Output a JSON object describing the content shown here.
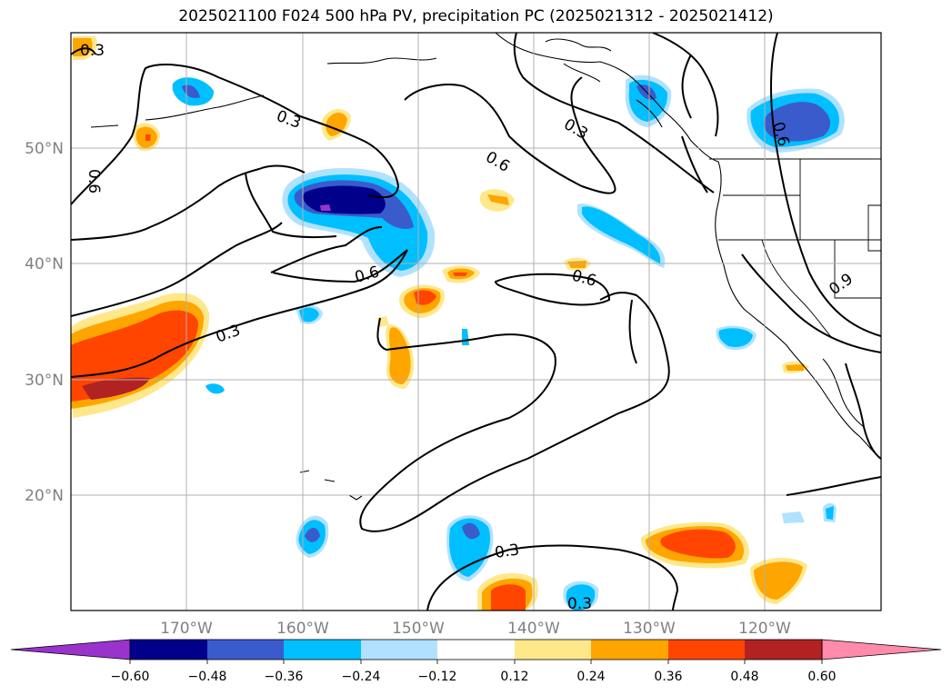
{
  "title": "2025021100 F024 500 hPa PV, precipitation PC (2025021312 - 2025021412)",
  "map": {
    "lon_labels": [
      "170°W",
      "160°W",
      "150°W",
      "140°W",
      "130°W",
      "120°W"
    ],
    "lat_labels": [
      "50°N",
      "40°N",
      "30°N",
      "20°N"
    ],
    "contour_labels": [
      "0.3",
      "0.3",
      "0.6",
      "0.6",
      "0.3",
      "0.6",
      "0.6",
      "0.6",
      "0.3",
      "0.3",
      "0.9",
      "0.3"
    ]
  },
  "colorbar": {
    "ticks": [
      "−0.60",
      "−0.48",
      "−0.36",
      "−0.24",
      "−0.12",
      "0.12",
      "0.24",
      "0.36",
      "0.48",
      "0.60"
    ],
    "colors": [
      "#9933cc",
      "#00008b",
      "#3a5bcc",
      "#00bfff",
      "#b0e2ff",
      "#ffffff",
      "#ffe88a",
      "#ffa500",
      "#ff4500",
      "#b22222",
      "#ff8aaa"
    ]
  }
}
